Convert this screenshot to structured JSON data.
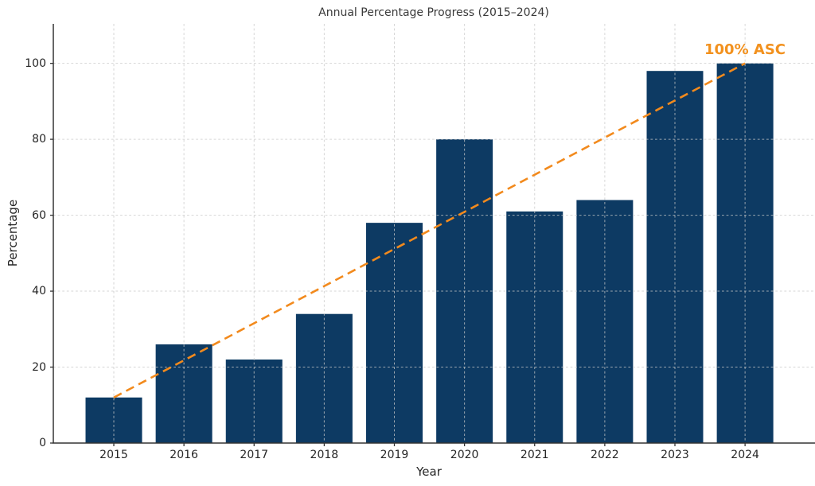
{
  "chart_data": {
    "type": "bar",
    "title": "Annual Percentage Progress (2015–2024)",
    "xlabel": "Year",
    "ylabel": "Percentage",
    "categories": [
      "2015",
      "2016",
      "2017",
      "2018",
      "2019",
      "2020",
      "2021",
      "2022",
      "2023",
      "2024"
    ],
    "values": [
      12,
      26,
      22,
      34,
      58,
      80,
      61,
      64,
      98,
      100
    ],
    "yticks": [
      0,
      20,
      40,
      60,
      80,
      100
    ],
    "ylim": [
      0,
      110.4
    ],
    "grid": true,
    "grid_style": "dashed",
    "legend": "none",
    "bar_color": "#0d3a63",
    "grid_color": "#c9c9c9",
    "spine_color": "#343434",
    "trend_line": {
      "style": "dashed",
      "color": "#f28a1d",
      "from": {
        "x": "2015",
        "y": 12
      },
      "to": {
        "x": "2024",
        "y": 100
      }
    },
    "annotation": {
      "text": "100% ASC",
      "color": "#f2911e",
      "x": "2024"
    }
  }
}
